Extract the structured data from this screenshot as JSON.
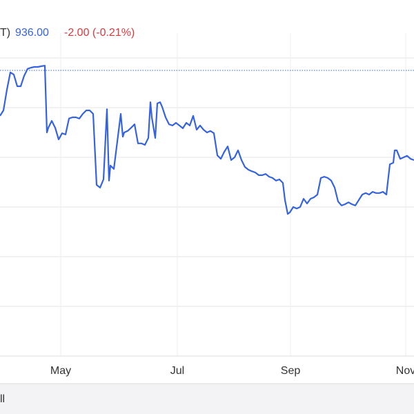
{
  "header": {
    "symbol_fragment": "T)",
    "price": "936.00",
    "change": "-2.00 (-0.21%)"
  },
  "footer": {
    "tab_fragment": "ll"
  },
  "chart_data": {
    "type": "line",
    "color": "#3563e0",
    "grid": true,
    "xlim": [
      0,
      120
    ],
    "ylim": [
      860,
      990
    ],
    "yticks": [
      860,
      880,
      900,
      920,
      940,
      960,
      980
    ],
    "xticks": [
      {
        "value": 17.6,
        "label": "May"
      },
      {
        "value": 51.4,
        "label": "Jul"
      },
      {
        "value": 84.2,
        "label": "Sep"
      },
      {
        "value": 117.6,
        "label": "Nov"
      }
    ],
    "reference_line": {
      "value": 975,
      "color": "#3563e0"
    },
    "x": [
      0,
      1,
      2,
      3,
      4,
      5,
      6,
      7,
      8,
      9,
      10,
      11,
      12,
      13,
      13.6,
      14,
      15,
      16,
      17,
      18,
      19,
      20,
      21,
      22,
      23,
      24,
      25,
      26,
      27,
      28,
      29,
      30,
      31,
      31.6,
      32,
      33,
      34,
      35,
      35.6,
      36,
      37,
      38,
      39,
      40,
      41,
      42,
      43,
      43.6,
      44,
      45,
      45.6,
      46.4,
      47,
      48,
      49,
      50,
      51,
      52,
      53,
      54,
      55,
      56,
      57,
      58,
      59,
      60,
      61,
      62,
      63,
      64,
      65,
      66,
      67,
      68,
      69,
      70,
      71,
      72,
      73,
      74,
      75,
      76,
      77,
      78,
      79,
      80,
      81,
      82,
      82.6,
      83.4,
      84,
      85,
      86,
      87,
      88,
      89,
      90,
      91,
      92,
      93,
      94,
      95,
      96,
      97,
      98,
      99,
      100,
      101,
      102,
      103,
      104,
      105,
      106,
      107,
      108,
      109,
      110,
      111,
      112,
      113,
      114,
      114.4,
      115,
      116,
      117,
      118,
      119,
      120
    ],
    "values": [
      956.7,
      958.9,
      967.2,
      974.2,
      973.3,
      968.6,
      968.6,
      972.8,
      975.6,
      976.1,
      976.4,
      976.4,
      976.7,
      976.9,
      950,
      951.9,
      954.7,
      951.9,
      947.2,
      949.7,
      949.2,
      955.6,
      956.1,
      956.1,
      955.6,
      957.5,
      958.9,
      958.9,
      957.5,
      928.9,
      927.8,
      931.1,
      959.4,
      930.6,
      936.7,
      935.3,
      946.4,
      957.5,
      948.3,
      950,
      950.6,
      951.9,
      953.3,
      945.6,
      945.6,
      945,
      947.8,
      962.2,
      956.1,
      947.8,
      961.7,
      962.2,
      960.3,
      956.1,
      953.3,
      952.8,
      953.9,
      952.8,
      951.7,
      953.9,
      952.8,
      956.7,
      951.1,
      952.8,
      951.1,
      950,
      950.6,
      949.7,
      940.8,
      939.4,
      942.2,
      944.4,
      938.9,
      940,
      942.8,
      938.9,
      936.1,
      935,
      934.4,
      933.9,
      932.8,
      932.8,
      933.3,
      932.2,
      931.7,
      930.6,
      931.1,
      929.7,
      922.8,
      917.2,
      917.8,
      920,
      919.4,
      920,
      923.3,
      921.4,
      923.3,
      923.9,
      925,
      931.7,
      932.2,
      931.7,
      930.6,
      927.8,
      922.2,
      920.6,
      921.1,
      921.9,
      921.1,
      920.6,
      922.8,
      925,
      925.6,
      925,
      926.1,
      925.6,
      925.6,
      926.1,
      925,
      937.2,
      937.8,
      942.8,
      942.8,
      939.4,
      940,
      940.6,
      939.4,
      938.9
    ]
  }
}
